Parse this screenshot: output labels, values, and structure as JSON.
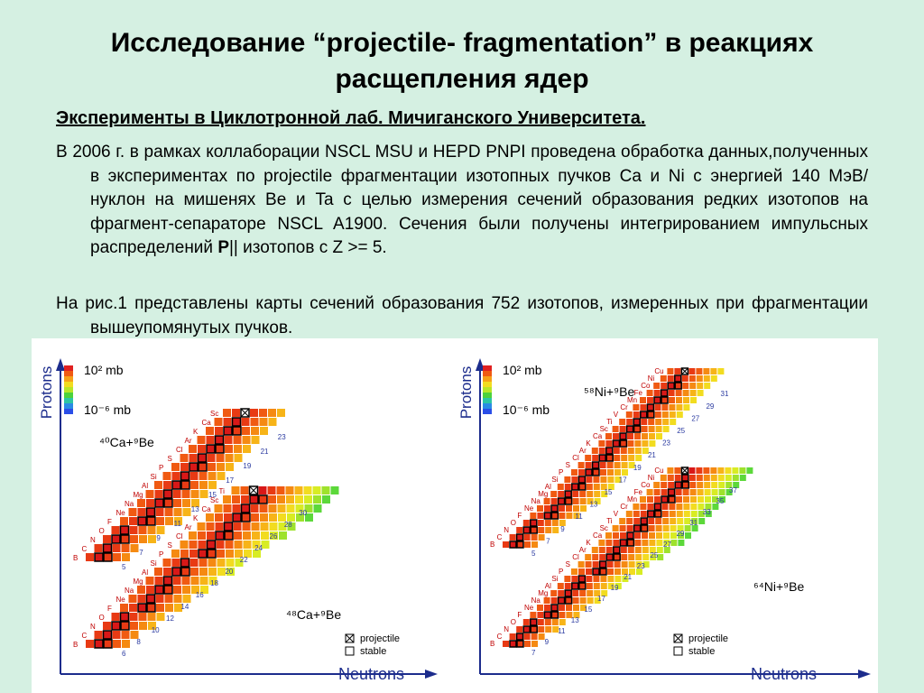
{
  "slide": {
    "title_line1": "Исследование “projectile- fragmentation” в реакциях",
    "title_line2": "расщепления ядер",
    "subtitle": "Эксперименты в Циклотронной лаб. Мичиганского Университета.",
    "paragraph1_a": "В 2006 г. в рамках коллаборации NSCL MSU и HEPD PNPI проведена обработка данных,полученных в экспериментах по projectile фрагментации изотопных пучков Ca и Ni с энергией 140 МэВ/нуклон на мишенях Be и Ta с целью измерения сечений образования редких изотопов на фрагмент-сепараторе NSCL A1900. Сечения были получены интегрированием импульсных распределений ",
    "paragraph1_bold": "P",
    "paragraph1_b": "|| изотопов с Z >= 5.",
    "paragraph2": "На рис.1 представлены карты сечений образования 752 изотопов, измеренных при фрагментации вышеупомянутых пучков."
  },
  "figure": {
    "left_panel": {
      "ylabel": "Protons",
      "xlabel": "Neutrons",
      "scale_top": "10² mb",
      "scale_bottom": "10⁻⁶ mb",
      "reaction_top": "⁴⁰Ca+⁹Be",
      "reaction_bottom": "⁴⁸Ca+⁹Be",
      "legend_projectile": "projectile",
      "legend_stable": "stable",
      "elements_top": [
        "B",
        "C",
        "N",
        "O",
        "F",
        "Ne",
        "Na",
        "Mg",
        "Al",
        "Si",
        "P",
        "S",
        "Cl",
        "Ar",
        "K",
        "Ca",
        "Sc"
      ],
      "elements_bottom": [
        "B",
        "C",
        "N",
        "O",
        "F",
        "Ne",
        "Na",
        "Mg",
        "Al",
        "Si",
        "P",
        "S",
        "Cl",
        "Ar",
        "K",
        "Ca",
        "Sc",
        "Ti"
      ],
      "neutron_numbers_top": [
        "5",
        "7",
        "9",
        "11",
        "13",
        "15",
        "17",
        "19",
        "21",
        "23"
      ],
      "neutron_numbers_bottom": [
        "6",
        "8",
        "10",
        "12",
        "14",
        "16",
        "18",
        "20",
        "22",
        "24",
        "26",
        "28",
        "30"
      ]
    },
    "right_panel": {
      "ylabel": "Protons",
      "xlabel": "Neutrons",
      "scale_top": "10² mb",
      "scale_bottom": "10⁻⁶ mb",
      "reaction_top": "⁵⁸Ni+⁹Be",
      "reaction_bottom": "⁶⁴Ni+⁹Be",
      "legend_projectile": "projectile",
      "legend_stable": "stable",
      "elements_top": [
        "B",
        "C",
        "N",
        "O",
        "F",
        "Ne",
        "Na",
        "Mg",
        "Al",
        "Si",
        "P",
        "S",
        "Cl",
        "Ar",
        "K",
        "Ca",
        "Sc",
        "Ti",
        "V",
        "Cr",
        "Mn",
        "Fe",
        "Co",
        "Ni",
        "Cu"
      ],
      "elements_bottom": [
        "B",
        "C",
        "N",
        "O",
        "F",
        "Ne",
        "Na",
        "Mg",
        "Al",
        "Si",
        "P",
        "S",
        "Cl",
        "Ar",
        "K",
        "Ca",
        "Sc",
        "Ti",
        "V",
        "Cr",
        "Mn",
        "Fe",
        "Co",
        "Ni",
        "Cu"
      ],
      "neutron_numbers_top": [
        "5",
        "7",
        "9",
        "11",
        "13",
        "15",
        "17",
        "19",
        "21",
        "23",
        "25",
        "27",
        "29",
        "31"
      ],
      "neutron_numbers_bottom": [
        "7",
        "9",
        "11",
        "13",
        "15",
        "17",
        "19",
        "21",
        "23",
        "25",
        "27",
        "29",
        "31",
        "33",
        "35",
        "37"
      ]
    }
  }
}
